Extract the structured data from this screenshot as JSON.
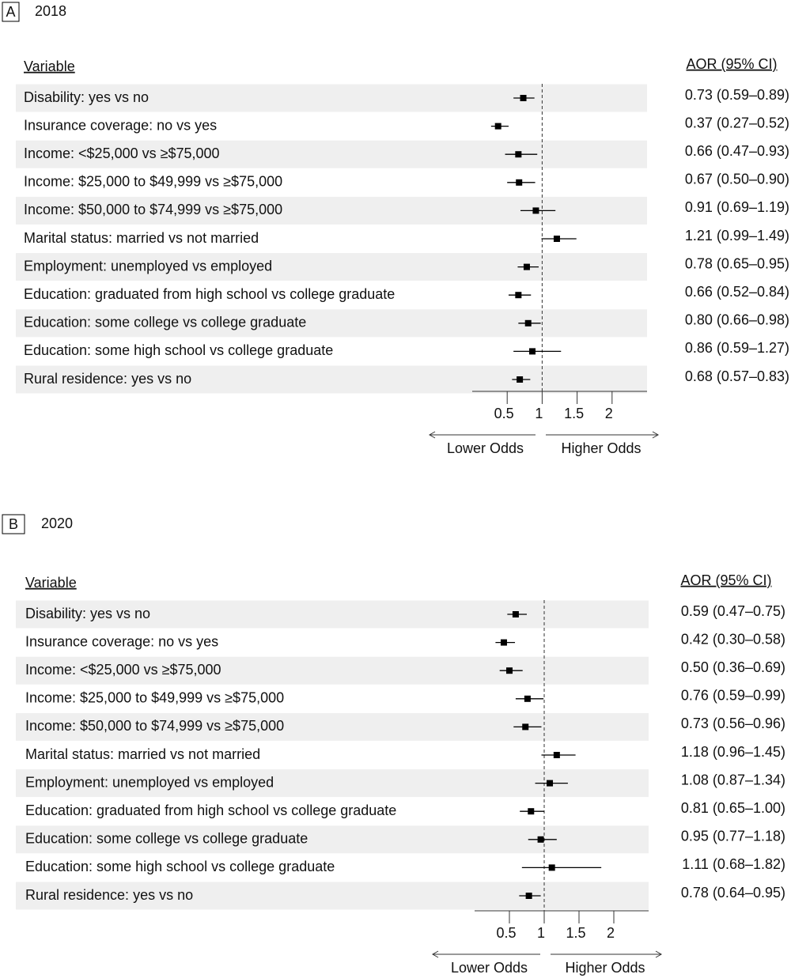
{
  "chart_data": [
    {
      "type": "forest",
      "panel": "A",
      "title": "2018",
      "label_header": "Variable",
      "value_header": "AOR (95% CI)",
      "categories": [
        "Disability: yes vs no",
        "Insurance coverage: no vs yes",
        "Income: <$25,000 vs ≥$75,000",
        "Income: $25,000 to $49,999 vs ≥$75,000",
        "Income: $50,000 to $74,999 vs ≥$75,000",
        "Marital status: married vs not married",
        "Employment: unemployed vs employed",
        "Education: graduated from high school vs college graduate",
        "Education: some college vs college graduate",
        "Education: some high school vs college graduate",
        "Rural residence: yes vs no"
      ],
      "values": [
        0.73,
        0.37,
        0.66,
        0.67,
        0.91,
        1.21,
        0.78,
        0.66,
        0.8,
        0.86,
        0.68
      ],
      "lower": [
        0.59,
        0.27,
        0.47,
        0.5,
        0.69,
        0.99,
        0.65,
        0.52,
        0.66,
        0.59,
        0.57
      ],
      "upper": [
        0.89,
        0.52,
        0.93,
        0.9,
        1.19,
        1.49,
        0.95,
        0.84,
        0.98,
        1.27,
        0.83
      ],
      "value_labels": [
        "0.73 (0.59–0.89)",
        "0.37 (0.27–0.52)",
        "0.66 (0.47–0.93)",
        "0.67 (0.50–0.90)",
        "0.91 (0.69–1.19)",
        "1.21 (0.99–1.49)",
        "0.78 (0.65–0.95)",
        "0.66 (0.52–0.84)",
        "0.80 (0.66–0.98)",
        "0.86 (0.59–1.27)",
        "0.68 (0.57–0.83)"
      ],
      "xlim": [
        0,
        2.5
      ],
      "xticks": [
        0.5,
        1,
        1.5,
        2
      ],
      "reference_line": 1,
      "lower_annotation": "Lower Odds",
      "higher_annotation": "Higher Odds",
      "color": "#000000",
      "band_color": "#efefef"
    },
    {
      "type": "forest",
      "panel": "B",
      "title": "2020",
      "label_header": "Variable",
      "value_header": "AOR (95% CI)",
      "categories": [
        "Disability: yes vs no",
        "Insurance coverage: no vs yes",
        "Income: <$25,000 vs ≥$75,000",
        "Income: $25,000 to $49,999 vs ≥$75,000",
        "Income: $50,000 to $74,999 vs ≥$75,000",
        "Marital status: married vs not married",
        "Employment: unemployed vs employed",
        "Education: graduated from high school vs college graduate",
        "Education: some college vs college graduate",
        "Education: some high school vs college graduate",
        "Rural residence: yes vs no"
      ],
      "values": [
        0.59,
        0.42,
        0.5,
        0.76,
        0.73,
        1.18,
        1.08,
        0.81,
        0.95,
        1.11,
        0.78
      ],
      "lower": [
        0.47,
        0.3,
        0.36,
        0.59,
        0.56,
        0.96,
        0.87,
        0.65,
        0.77,
        0.68,
        0.64
      ],
      "upper": [
        0.75,
        0.58,
        0.69,
        0.99,
        0.96,
        1.45,
        1.34,
        1.0,
        1.18,
        1.82,
        0.95
      ],
      "value_labels": [
        "0.59 (0.47–0.75)",
        "0.42 (0.30–0.58)",
        "0.50 (0.36–0.69)",
        "0.76 (0.59–0.99)",
        "0.73 (0.56–0.96)",
        "1.18 (0.96–1.45)",
        "1.08 (0.87–1.34)",
        "0.81 (0.65–1.00)",
        "0.95 (0.77–1.18)",
        "1.11 (0.68–1.82)",
        "0.78 (0.64–0.95)"
      ],
      "xlim": [
        0,
        2.5
      ],
      "xticks": [
        0.5,
        1,
        1.5,
        2
      ],
      "reference_line": 1,
      "lower_annotation": "Lower Odds",
      "higher_annotation": "Higher Odds",
      "color": "#000000",
      "band_color": "#efefef"
    }
  ]
}
